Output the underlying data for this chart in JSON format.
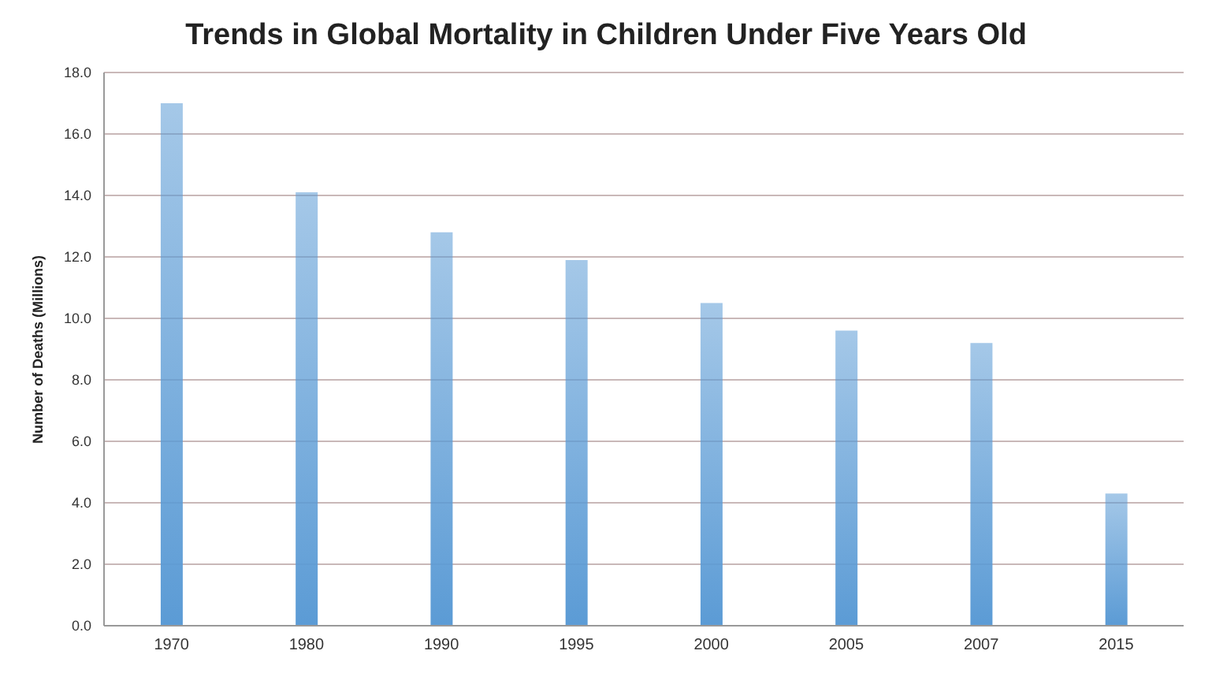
{
  "chart_data": {
    "type": "bar",
    "title": "Trends in Global Mortality in Children Under Five Years Old",
    "ylabel": "Number of Deaths (Millions)",
    "categories": [
      "1970",
      "1980",
      "1990",
      "1995",
      "2000",
      "2005",
      "2007",
      "2015"
    ],
    "values": [
      17.0,
      14.1,
      12.8,
      11.9,
      10.5,
      9.6,
      9.2,
      4.3
    ],
    "color": "#5b9bd5",
    "ylim": [
      0,
      18
    ],
    "yticks": [
      {
        "value": 0,
        "label": "0.0"
      },
      {
        "value": 2,
        "label": "2.0"
      },
      {
        "value": 4,
        "label": "4.0"
      },
      {
        "value": 6,
        "label": "6.0"
      },
      {
        "value": 8,
        "label": "8.0"
      },
      {
        "value": 10,
        "label": "10.0"
      },
      {
        "value": 12,
        "label": "12.0"
      },
      {
        "value": 14,
        "label": "14.0"
      },
      {
        "value": 16,
        "label": "16.0"
      },
      {
        "value": 18,
        "label": "18.0"
      }
    ],
    "grid": "y",
    "legend": false
  }
}
